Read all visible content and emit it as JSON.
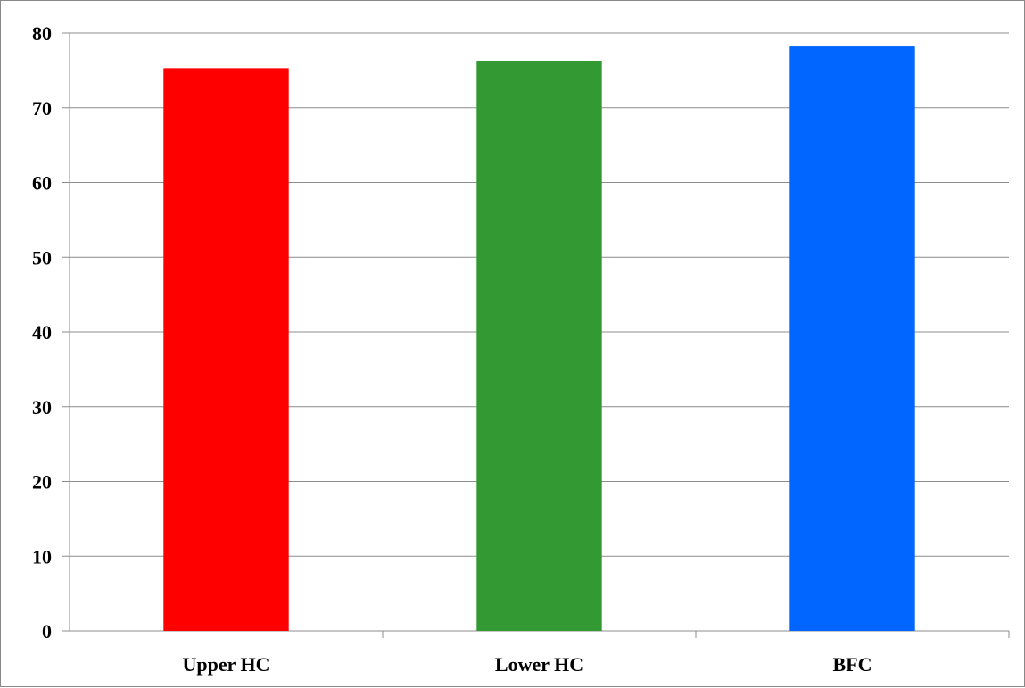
{
  "chart_data": {
    "type": "bar",
    "title": "",
    "xlabel": "",
    "ylabel": "",
    "categories": [
      "Upper HC",
      "Lower HC",
      "BFC"
    ],
    "values": [
      75.3,
      76.3,
      78.2
    ],
    "colors": [
      "#ff0000",
      "#339933",
      "#0066ff"
    ],
    "ylim": [
      0,
      80
    ],
    "yticks": [
      0,
      10,
      20,
      30,
      40,
      50,
      60,
      70,
      80
    ],
    "grid": true,
    "legend": "none"
  }
}
